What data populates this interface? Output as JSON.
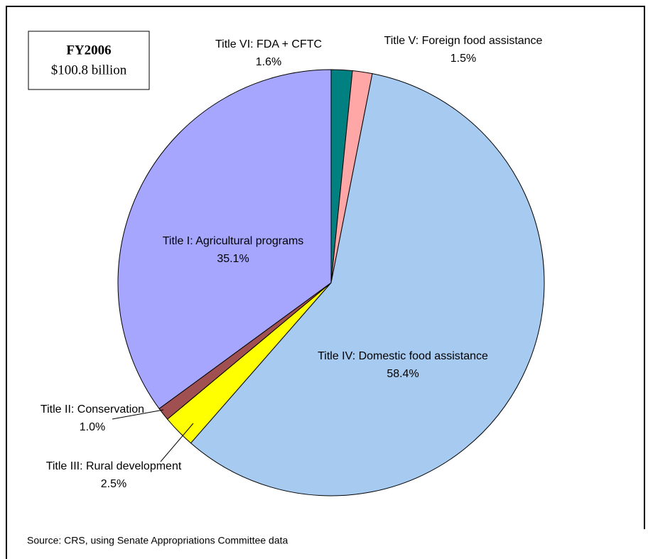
{
  "chart_data": {
    "type": "pie",
    "title": "FY2006",
    "subtitle": "$100.8 billion",
    "categories": [
      "Title VI: FDA + CFTC",
      "Title V: Foreign food assistance",
      "Title IV: Domestic food assistance",
      "Title III: Rural development",
      "Title II: Conservation",
      "Title I: Agricultural programs"
    ],
    "values": [
      1.6,
      1.5,
      58.4,
      2.5,
      1.0,
      35.1
    ],
    "value_labels": [
      "1.6%",
      "1.5%",
      "58.4%",
      "2.5%",
      "1.0%",
      "35.1%"
    ],
    "colors": [
      "#008080",
      "#ffa6a6",
      "#a6caf0",
      "#ffff00",
      "#a05050",
      "#a6a6ff"
    ],
    "source": "Source: CRS, using Senate Appropriations Committee data"
  }
}
